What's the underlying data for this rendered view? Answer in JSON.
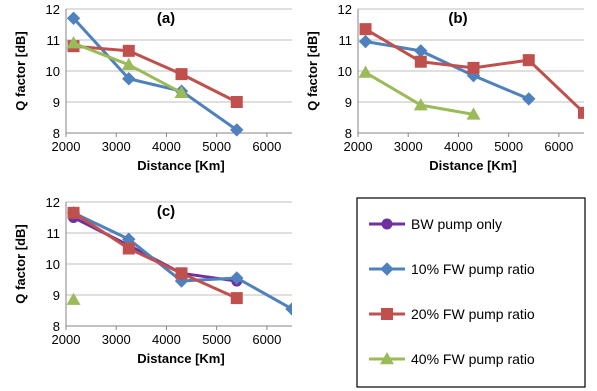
{
  "chart_data": [
    {
      "type": "line",
      "panel_label": "(a)",
      "xlabel": "Distance [Km]",
      "ylabel": "Q factor [dB]",
      "xlim": [
        2000,
        6500
      ],
      "ylim": [
        8,
        12
      ],
      "xticks": [
        "2000",
        "3000",
        "4000",
        "5000",
        "6000"
      ],
      "yticks": [
        "8",
        "9",
        "10",
        "11",
        "12"
      ],
      "grid": "horizontal",
      "series": [
        {
          "key": "fw10",
          "x": [
            2150,
            3250,
            4300,
            5400
          ],
          "y": [
            11.7,
            9.75,
            9.35,
            8.1
          ]
        },
        {
          "key": "fw20",
          "x": [
            2150,
            3250,
            4300,
            5400
          ],
          "y": [
            10.8,
            10.65,
            9.9,
            9.0
          ]
        },
        {
          "key": "fw40",
          "x": [
            2150,
            3250,
            4300
          ],
          "y": [
            10.9,
            10.2,
            9.3
          ]
        }
      ]
    },
    {
      "type": "line",
      "panel_label": "(b)",
      "xlabel": "Distance [Km]",
      "ylabel": "Q factor [dB]",
      "xlim": [
        2000,
        6500
      ],
      "ylim": [
        8,
        12
      ],
      "xticks": [
        "2000",
        "3000",
        "4000",
        "5000",
        "6000"
      ],
      "yticks": [
        "8",
        "9",
        "10",
        "11",
        "12"
      ],
      "grid": "horizontal",
      "series": [
        {
          "key": "fw10",
          "x": [
            2150,
            3250,
            4300,
            5400
          ],
          "y": [
            10.95,
            10.65,
            9.85,
            9.1
          ]
        },
        {
          "key": "fw20",
          "x": [
            2150,
            3250,
            4300,
            5400,
            6500
          ],
          "y": [
            11.35,
            10.3,
            10.1,
            10.35,
            8.65
          ]
        },
        {
          "key": "fw40",
          "x": [
            2150,
            3250,
            4300
          ],
          "y": [
            9.95,
            8.9,
            8.6
          ]
        }
      ]
    },
    {
      "type": "line",
      "panel_label": "(c)",
      "xlabel": "Distance [Km]",
      "ylabel": "Q factor [dB]",
      "xlim": [
        2000,
        6500
      ],
      "ylim": [
        8,
        12
      ],
      "xticks": [
        "2000",
        "3000",
        "4000",
        "5000",
        "6000"
      ],
      "yticks": [
        "8",
        "9",
        "10",
        "11",
        "12"
      ],
      "grid": "horizontal",
      "series": [
        {
          "key": "bw",
          "x": [
            2150,
            3250,
            4300,
            5400
          ],
          "y": [
            11.5,
            10.6,
            9.7,
            9.45
          ]
        },
        {
          "key": "fw10",
          "x": [
            2150,
            3250,
            4300,
            5400,
            6500
          ],
          "y": [
            11.65,
            10.8,
            9.45,
            9.55,
            8.55
          ]
        },
        {
          "key": "fw20",
          "x": [
            2150,
            3250,
            4300,
            5400
          ],
          "y": [
            11.65,
            10.5,
            9.7,
            8.9
          ]
        },
        {
          "key": "fw40",
          "x": [
            2150
          ],
          "y": [
            8.85
          ]
        }
      ]
    }
  ],
  "legend": {
    "placement": "bottom-right",
    "items": [
      {
        "key": "bw",
        "label": "BW pump only",
        "color": "#7030a0",
        "marker": "circle"
      },
      {
        "key": "fw10",
        "label": "10% FW pump ratio",
        "color": "#4f81bd",
        "marker": "diamond"
      },
      {
        "key": "fw20",
        "label": "20% FW pump ratio",
        "color": "#c0504d",
        "marker": "square"
      },
      {
        "key": "fw40",
        "label": "40% FW pump ratio",
        "color": "#9bbb59",
        "marker": "triangle"
      }
    ]
  }
}
